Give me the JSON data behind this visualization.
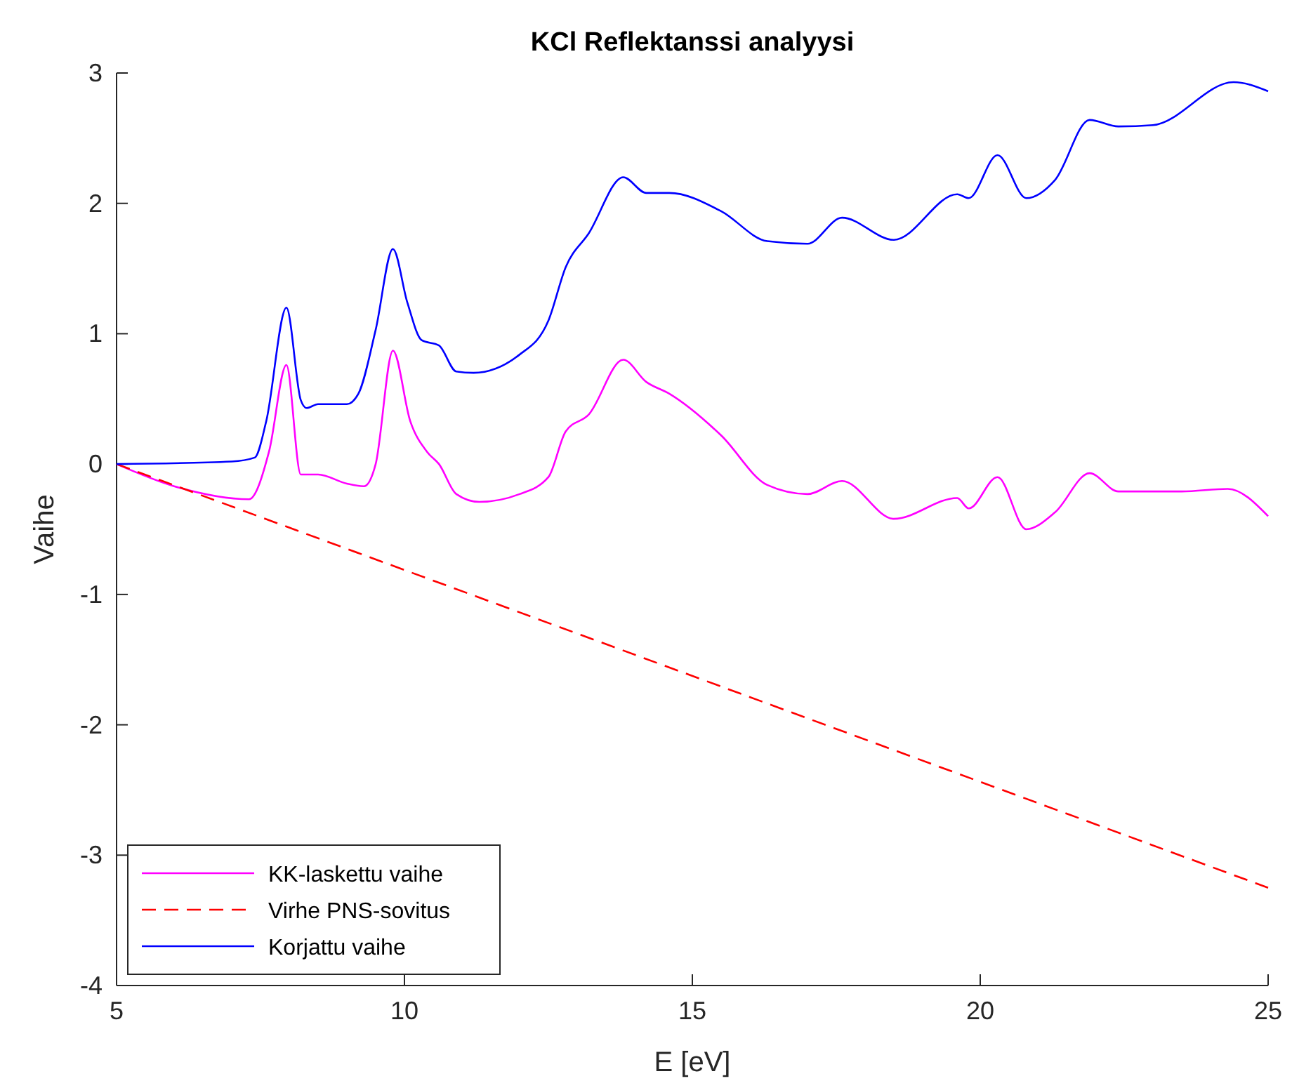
{
  "chart_data": {
    "type": "line",
    "title": "KCl Reflektanssi analyysi",
    "xlabel": "E [eV]",
    "ylabel": "Vaihe",
    "xlim": [
      5,
      25
    ],
    "ylim": [
      -4,
      3
    ],
    "xticks": [
      5,
      10,
      15,
      20,
      25
    ],
    "yticks": [
      -4,
      -3,
      -2,
      -1,
      0,
      1,
      2,
      3
    ],
    "grid": false,
    "legend": "bottom left",
    "marker": "none",
    "series": [
      {
        "name": "KK-laskettu vaihe",
        "color": "#ff00ff",
        "line_style": "solid",
        "x": [
          5,
          6,
          7.3,
          7.65,
          7.95,
          8.2,
          8.5,
          9.0,
          9.3,
          9.5,
          9.8,
          10.1,
          10.4,
          10.6,
          10.9,
          11.3,
          12.0,
          12.5,
          12.8,
          13.2,
          13.8,
          14.2,
          14.6,
          15.5,
          16.3,
          17.0,
          17.6,
          18.5,
          19.6,
          19.8,
          20.3,
          20.8,
          21.3,
          21.9,
          22.4,
          23.5,
          24.3,
          25
        ],
        "values": [
          0,
          -0.17,
          -0.27,
          0.1,
          0.76,
          -0.08,
          -0.08,
          -0.15,
          -0.17,
          0.0,
          0.87,
          0.33,
          0.09,
          0.0,
          -0.23,
          -0.29,
          -0.23,
          -0.1,
          0.25,
          0.38,
          0.8,
          0.63,
          0.54,
          0.22,
          -0.16,
          -0.23,
          -0.13,
          -0.42,
          -0.26,
          -0.34,
          -0.1,
          -0.5,
          -0.37,
          -0.07,
          -0.21,
          -0.21,
          -0.19,
          -0.4
        ]
      },
      {
        "name": "Virhe PNS-sovitus",
        "color": "#ff0000",
        "line_style": "dashed",
        "x": [
          5,
          25
        ],
        "values": [
          0,
          -3.25
        ]
      },
      {
        "name": "Korjattu vaihe",
        "color": "#0000ff",
        "line_style": "solid",
        "x": [
          5,
          7,
          7.4,
          7.6,
          7.95,
          8.2,
          8.3,
          8.5,
          9.0,
          9.2,
          9.5,
          9.8,
          10.05,
          10.3,
          10.6,
          10.9,
          11.2,
          12.0,
          12.5,
          12.8,
          13.2,
          13.8,
          14.2,
          14.6,
          15.5,
          16.3,
          17.0,
          17.6,
          18.5,
          19.6,
          19.8,
          20.3,
          20.8,
          21.3,
          21.9,
          22.4,
          23.0,
          24.4,
          25
        ],
        "values": [
          0,
          0.02,
          0.05,
          0.33,
          1.2,
          0.49,
          0.43,
          0.46,
          0.46,
          0.54,
          1.03,
          1.65,
          1.24,
          0.95,
          0.91,
          0.71,
          0.7,
          0.84,
          1.1,
          1.51,
          1.77,
          2.2,
          2.08,
          2.08,
          1.94,
          1.71,
          1.69,
          1.89,
          1.72,
          2.07,
          2.04,
          2.37,
          2.04,
          2.18,
          2.64,
          2.59,
          2.6,
          2.93,
          2.86
        ]
      }
    ]
  }
}
